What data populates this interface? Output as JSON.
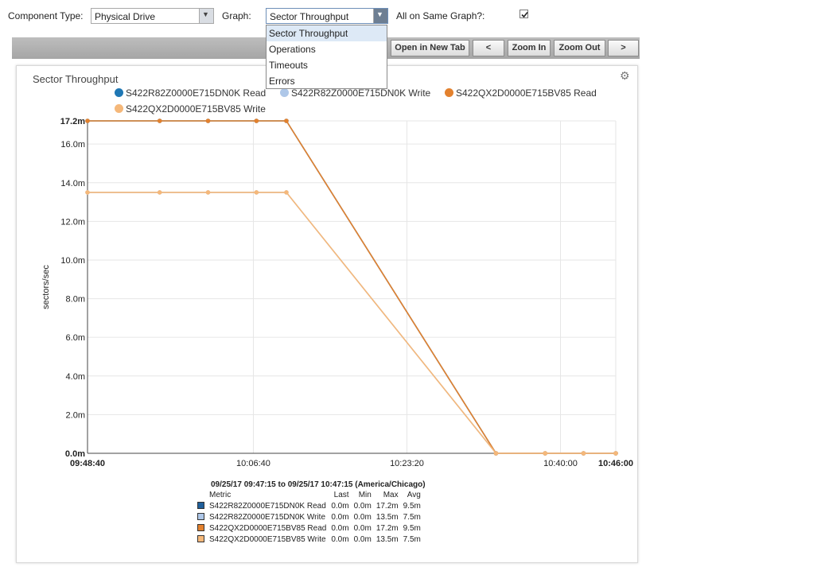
{
  "controls": {
    "component_type_label": "Component Type:",
    "component_type_value": "Physical Drive",
    "graph_label": "Graph:",
    "graph_value": "Sector Throughput",
    "same_graph_label": "All on Same Graph?:",
    "same_graph_checked": true
  },
  "dropdown": {
    "options": [
      "Sector Throughput",
      "Operations",
      "Timeouts",
      "Errors"
    ],
    "selected": "Sector Throughput"
  },
  "toolbar": {
    "open_new_tab": "Open in New Tab",
    "prev": "<",
    "zoom_in": "Zoom In",
    "zoom_out": "Zoom Out",
    "next": ">"
  },
  "icons": {
    "gear": "gear-icon",
    "dropdown": "chevron-down-icon",
    "check": "check-icon"
  },
  "chart_data": {
    "type": "line",
    "title": "Sector Throughput",
    "ylabel": "sectors/sec",
    "xlabel": "",
    "grid": true,
    "legend_placement": "top",
    "ylim": [
      0,
      17.2
    ],
    "y_ticks": [
      {
        "v": 0,
        "label": "0.0m",
        "bold": true
      },
      {
        "v": 2,
        "label": "2.0m"
      },
      {
        "v": 4,
        "label": "4.0m"
      },
      {
        "v": 6,
        "label": "6.0m"
      },
      {
        "v": 8,
        "label": "8.0m"
      },
      {
        "v": 10,
        "label": "10.0m"
      },
      {
        "v": 12,
        "label": "12.0m"
      },
      {
        "v": 14,
        "label": "14.0m"
      },
      {
        "v": 16,
        "label": "16.0m"
      },
      {
        "v": 17.2,
        "label": "17.2m",
        "bold": true
      }
    ],
    "xlim": [
      "09:48:40",
      "10:46:00"
    ],
    "x_ticks": [
      {
        "t": "09:48:40",
        "bold": true
      },
      {
        "t": "10:06:40"
      },
      {
        "t": "10:23:20"
      },
      {
        "t": "10:40:00"
      },
      {
        "t": "10:46:00",
        "bold": true
      }
    ],
    "x": [
      "09:48:40",
      "09:56:30",
      "10:01:45",
      "10:07:00",
      "10:10:15",
      "10:33:00",
      "10:38:20",
      "10:42:30",
      "10:46:00"
    ],
    "series": [
      {
        "name": "S422R82Z0000E715DN0K Read",
        "color": "#1f77b4",
        "values": [
          17.2,
          17.2,
          17.2,
          17.2,
          17.2,
          0,
          0,
          0,
          0
        ]
      },
      {
        "name": "S422R82Z0000E715DN0K Write",
        "color": "#aec7e8",
        "values": [
          13.5,
          13.5,
          13.5,
          13.5,
          13.5,
          0,
          0,
          0,
          0
        ]
      },
      {
        "name": "S422QX2D0000E715BV85 Read",
        "color": "#e3812e",
        "values": [
          17.2,
          17.2,
          17.2,
          17.2,
          17.2,
          0,
          0,
          0,
          0
        ]
      },
      {
        "name": "S422QX2D0000E715BV85 Write",
        "color": "#f5b87a",
        "values": [
          13.5,
          13.5,
          13.5,
          13.5,
          13.5,
          0,
          0,
          0,
          0
        ]
      }
    ]
  },
  "summary": {
    "range": "09/25/17 09:47:15 to 09/25/17 10:47:15 (America/Chicago)",
    "headers": [
      "Metric",
      "Last",
      "Min",
      "Max",
      "Avg"
    ],
    "rows": [
      {
        "swatch": "#1f5f9b",
        "metric": "S422R82Z0000E715DN0K Read",
        "last": "0.0m",
        "min": "0.0m",
        "max": "17.2m",
        "avg": "9.5m"
      },
      {
        "swatch": "#aec7e8",
        "metric": "S422R82Z0000E715DN0K Write",
        "last": "0.0m",
        "min": "0.0m",
        "max": "13.5m",
        "avg": "7.5m"
      },
      {
        "swatch": "#e3812e",
        "metric": "S422QX2D0000E715BV85 Read",
        "last": "0.0m",
        "min": "0.0m",
        "max": "17.2m",
        "avg": "9.5m"
      },
      {
        "swatch": "#f5b87a",
        "metric": "S422QX2D0000E715BV85 Write",
        "last": "0.0m",
        "min": "0.0m",
        "max": "13.5m",
        "avg": "7.5m"
      }
    ]
  }
}
